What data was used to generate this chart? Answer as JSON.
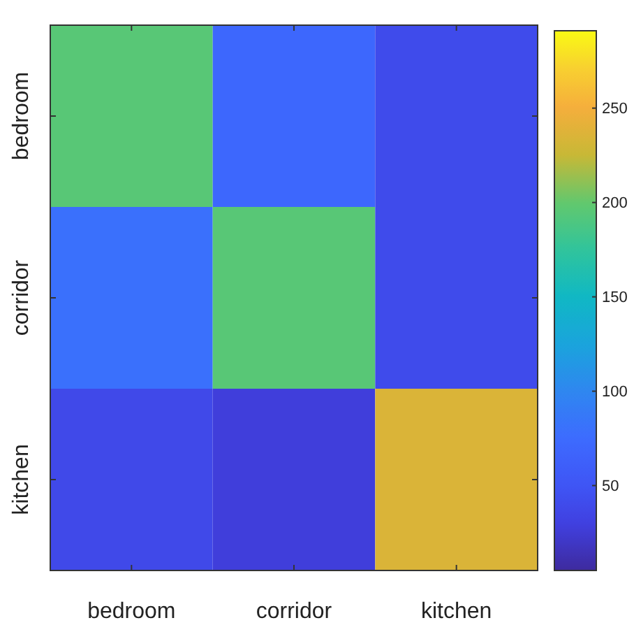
{
  "chart_data": {
    "type": "heatmap",
    "categories": [
      "bedroom",
      "corridor",
      "kitchen"
    ],
    "y_categories": [
      "bedroom",
      "corridor",
      "kitchen"
    ],
    "cells": [
      [
        195,
        70,
        40
      ],
      [
        80,
        195,
        40
      ],
      [
        38,
        28,
        235
      ]
    ],
    "clim": [
      5,
      291
    ],
    "cticks": [
      50,
      100,
      150,
      200,
      250
    ]
  }
}
